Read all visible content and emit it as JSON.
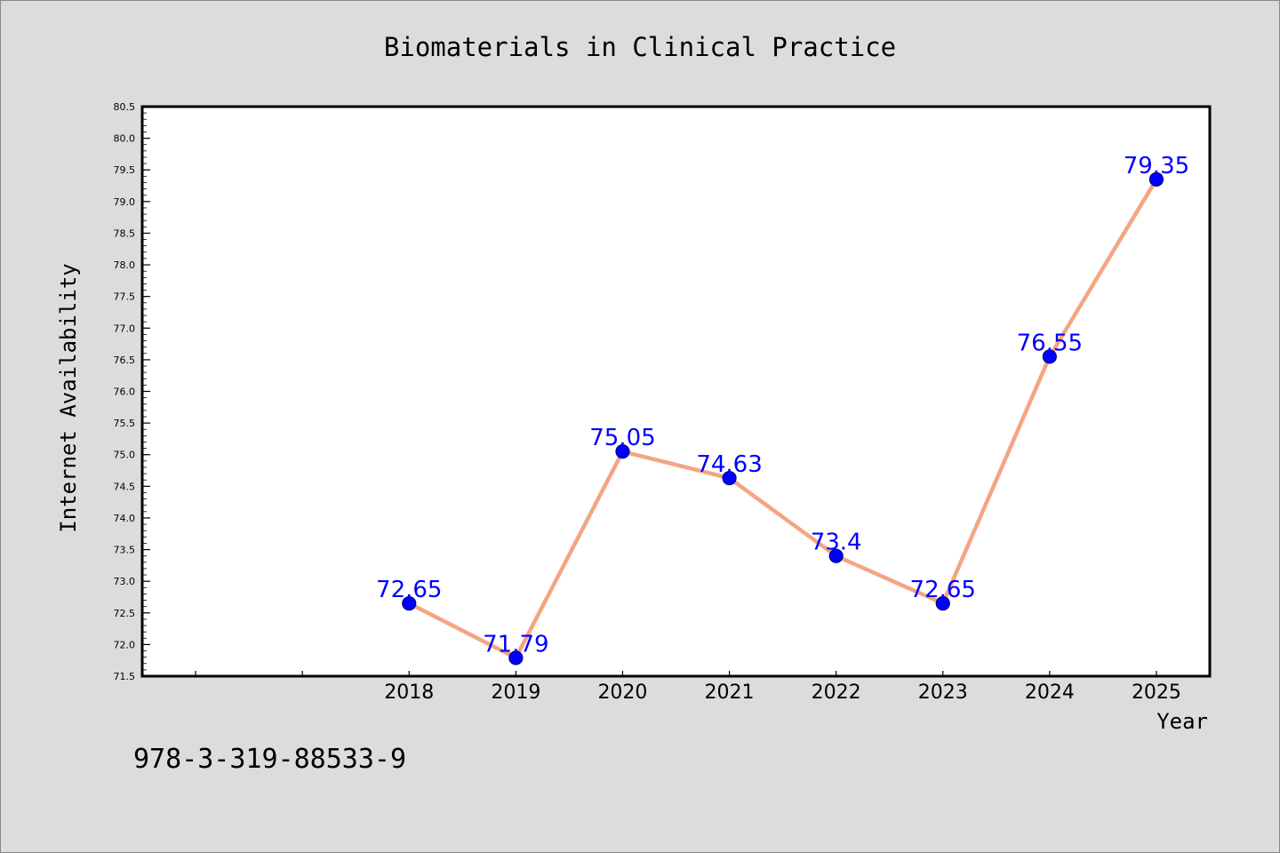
{
  "colors": {
    "background": "#dcdcdc",
    "plot_background": "#ffffff",
    "line": "#f4a582",
    "marker": "#0000ff",
    "marker_edge": "#00008b",
    "data_label": "#0000ff",
    "text": "#000000"
  },
  "identifier": "978-3-319-88533-9",
  "chart_data": {
    "type": "line",
    "title": "Biomaterials in Clinical Practice",
    "xlabel": "Year",
    "ylabel": "Internet Availability",
    "x": [
      "2018",
      "2019",
      "2020",
      "2021",
      "2022",
      "2023",
      "2024",
      "2025"
    ],
    "series": [
      {
        "values": [
          72.65,
          71.79,
          75.05,
          74.63,
          73.4,
          72.65,
          76.55,
          79.35
        ],
        "labels": [
          "72.65",
          "71.79",
          "75.05",
          "74.63",
          "73.4",
          "72.65",
          "76.55",
          "79.35"
        ]
      }
    ],
    "xlim": [
      2015.5,
      2025.5
    ],
    "ylim": [
      71.5,
      80.5
    ],
    "yticks": [
      "71.5",
      "72.0",
      "72.5",
      "73.0",
      "73.5",
      "74.0",
      "74.5",
      "75.0",
      "75.5",
      "76.0",
      "76.5",
      "77.0",
      "77.5",
      "78.0",
      "78.5",
      "79.0",
      "79.5",
      "80.0",
      "80.5"
    ],
    "grid": false,
    "legend": "none"
  }
}
